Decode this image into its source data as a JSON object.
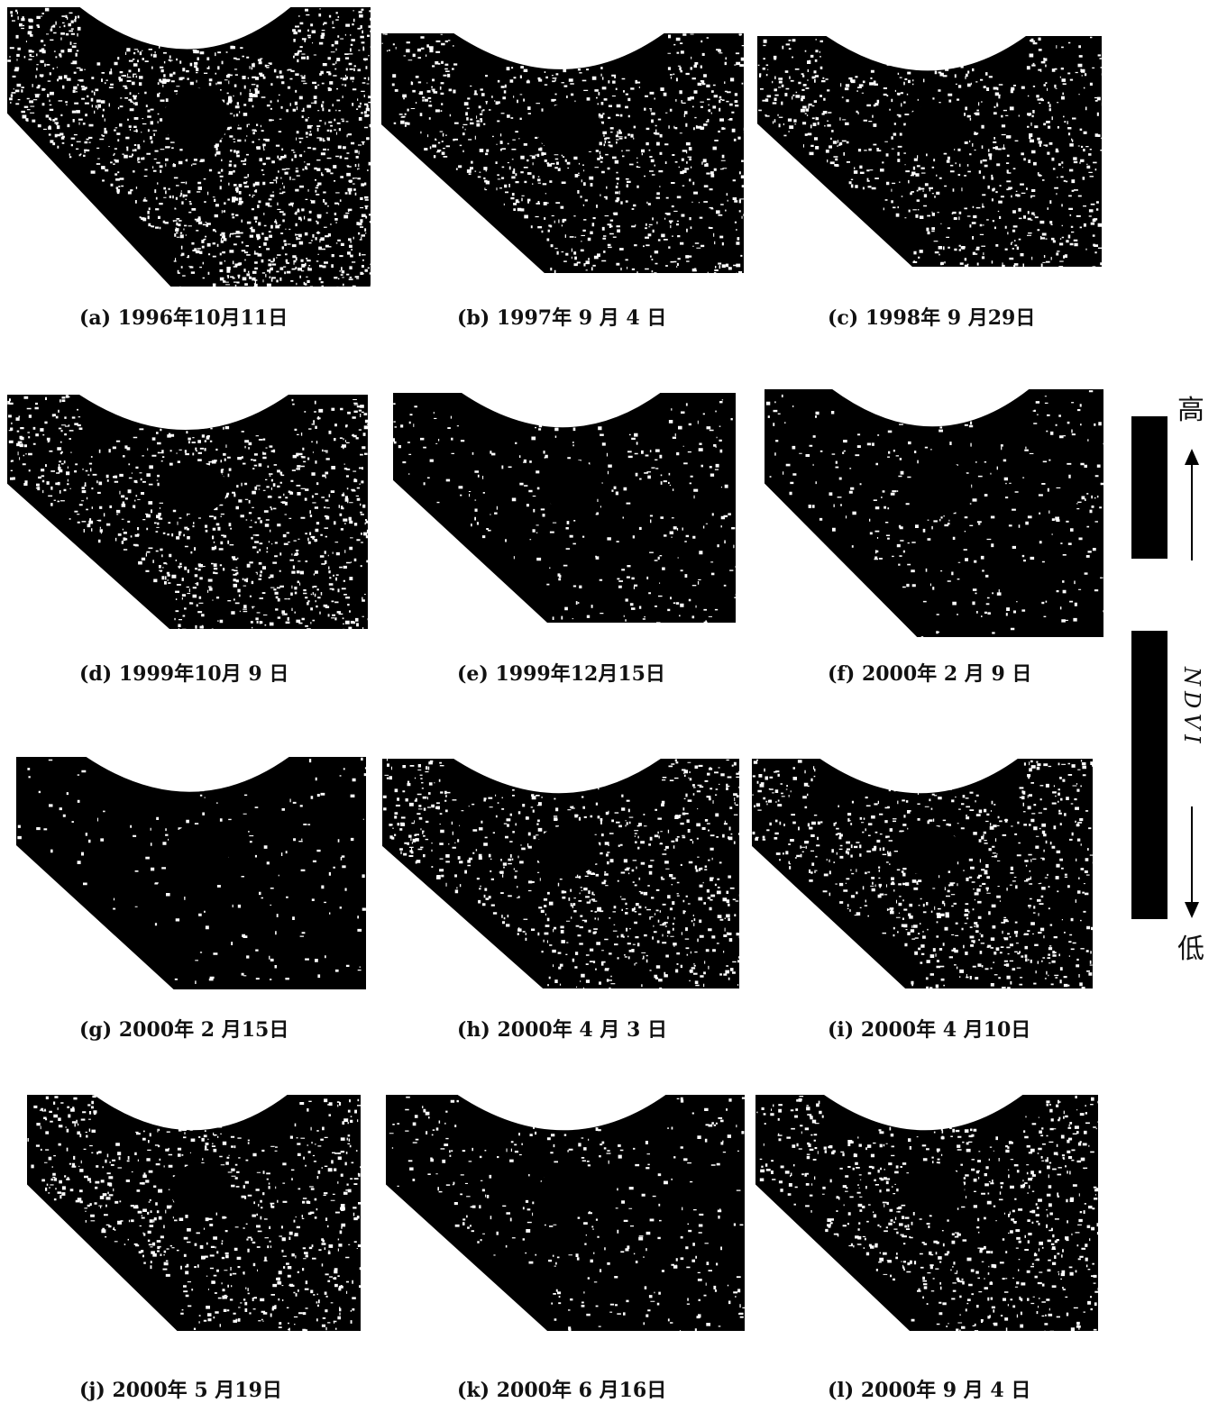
{
  "panels": [
    {
      "caption": "(a) 1996年10月11日",
      "texture": "light"
    },
    {
      "caption": "(b) 1997年 9 月 4 日",
      "texture": "medium"
    },
    {
      "caption": "(c) 1998年 9 月29日",
      "texture": "medium"
    },
    {
      "caption": "(d) 1999年10月 9 日",
      "texture": "medium-dark-patch"
    },
    {
      "caption": "(e) 1999年12月15日",
      "texture": "dark"
    },
    {
      "caption": "(f) 2000年 2 月 9 日",
      "texture": "dark"
    },
    {
      "caption": "(g) 2000年 2 月15日",
      "texture": "very-dark"
    },
    {
      "caption": "(h) 2000年 4 月 3 日",
      "texture": "medium"
    },
    {
      "caption": "(i) 2000年 4 月10日",
      "texture": "medium"
    },
    {
      "caption": "(j) 2000年 5 月19日",
      "texture": "medium"
    },
    {
      "caption": "(k) 2000年 6 月16日",
      "texture": "dark"
    },
    {
      "caption": "(l) 2000年 9 月 4 日",
      "texture": "medium"
    }
  ],
  "legend": {
    "high_label": "高",
    "low_label": "低",
    "axis_label": "NDVI"
  }
}
